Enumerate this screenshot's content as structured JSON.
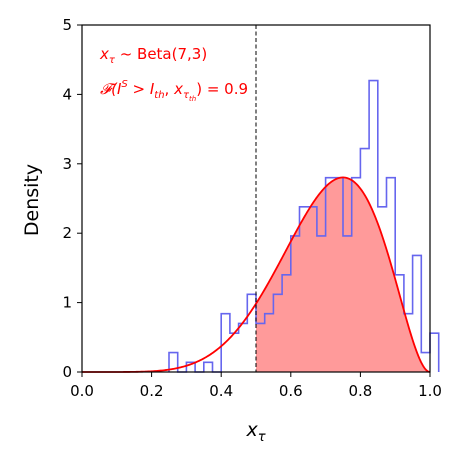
{
  "chart_data": {
    "type": "line",
    "title": "",
    "xlabel": "x",
    "xlabel_sub": "τ",
    "ylabel": "Density",
    "xlim": [
      0.0,
      1.0
    ],
    "ylim": [
      0,
      5
    ],
    "xticks": [
      "0.0",
      "0.2",
      "0.4",
      "0.6",
      "0.8",
      "1.0"
    ],
    "yticks": [
      "0",
      "1",
      "2",
      "3",
      "4",
      "5"
    ],
    "grid": false,
    "colors": {
      "histogram": "#6666ee",
      "curve": "#ff0000",
      "fill": "#ff9a9a",
      "annotation": "#ff0000",
      "threshold": "#000000"
    },
    "threshold_x": 0.5,
    "distribution": {
      "alpha": 7,
      "beta": 3
    },
    "histogram": {
      "bin_width": 0.025,
      "edges_start": 0.25,
      "densities": [
        0.28,
        0.0,
        0.14,
        0.0,
        0.14,
        0.0,
        0.84,
        0.56,
        0.7,
        1.12,
        0.7,
        0.84,
        1.12,
        1.4,
        1.96,
        2.38,
        2.38,
        1.96,
        2.8,
        2.8,
        1.96,
        2.8,
        3.22,
        4.2,
        2.38,
        2.8,
        1.4,
        0.84,
        1.68,
        0.28,
        0.56
      ]
    },
    "annotations": {
      "line1": {
        "var": "x",
        "sub": "τ",
        "op": " ~ ",
        "rest": "Beta(7,3)"
      },
      "line2": {
        "prefix": "𝓕(",
        "I": "I",
        "S": "S",
        "gt": " > ",
        "Ith_I": "I",
        "th": "th",
        "comma": ", ",
        "x": "x",
        "tau": "τ",
        "tau_th": "th",
        "close": ") = ",
        "value": "0.9"
      }
    }
  }
}
